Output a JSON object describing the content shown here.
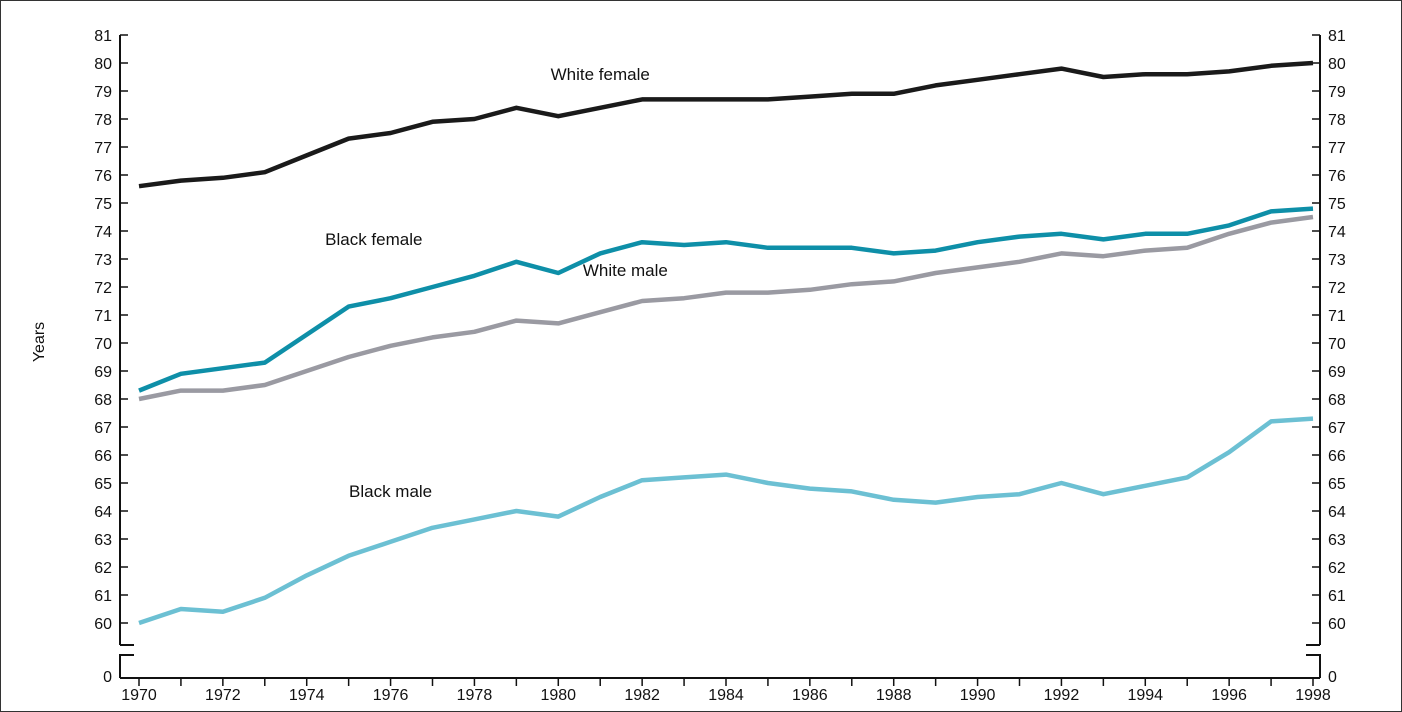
{
  "chart_data": {
    "type": "line",
    "ylabel": "Years",
    "xlabel": "",
    "title": "",
    "x": [
      1970,
      1971,
      1972,
      1973,
      1974,
      1975,
      1976,
      1977,
      1978,
      1979,
      1980,
      1981,
      1982,
      1983,
      1984,
      1985,
      1986,
      1987,
      1988,
      1989,
      1990,
      1991,
      1992,
      1993,
      1994,
      1995,
      1996,
      1997,
      1998
    ],
    "x_tick_labels": [
      "1970",
      "1972",
      "1974",
      "1976",
      "1978",
      "1980",
      "1982",
      "1984",
      "1986",
      "1988",
      "1990",
      "1992",
      "1994",
      "1996",
      "1998"
    ],
    "x_tick_values": [
      1970,
      1972,
      1974,
      1976,
      1978,
      1980,
      1982,
      1984,
      1986,
      1988,
      1990,
      1992,
      1994,
      1996,
      1998
    ],
    "ylim": [
      60,
      81
    ],
    "y_ticks": [
      60,
      61,
      62,
      63,
      64,
      65,
      66,
      67,
      68,
      69,
      70,
      71,
      72,
      73,
      74,
      75,
      76,
      77,
      78,
      79,
      80,
      81
    ],
    "y_tick_labels": [
      "60",
      "61",
      "62",
      "63",
      "64",
      "65",
      "66",
      "67",
      "68",
      "69",
      "70",
      "71",
      "72",
      "73",
      "74",
      "75",
      "76",
      "77",
      "78",
      "79",
      "80",
      "81"
    ],
    "y_zero_label": "0",
    "axis_break": true,
    "grid": false,
    "series": [
      {
        "name": "White female",
        "color": "#1a1a1a",
        "label_at": [
          1981,
          79.4
        ],
        "values": [
          75.6,
          75.8,
          75.9,
          76.1,
          76.7,
          77.3,
          77.5,
          77.9,
          78.0,
          78.4,
          78.1,
          78.4,
          78.7,
          78.7,
          78.7,
          78.7,
          78.8,
          78.9,
          78.9,
          79.2,
          79.4,
          79.6,
          79.8,
          79.5,
          79.6,
          79.6,
          79.7,
          79.9,
          80.0
        ]
      },
      {
        "name": "Black female",
        "color": "#0e8fa8",
        "label_at": [
          1975.6,
          73.5
        ],
        "values": [
          68.3,
          68.9,
          69.1,
          69.3,
          70.3,
          71.3,
          71.6,
          72.0,
          72.4,
          72.9,
          72.5,
          73.2,
          73.6,
          73.5,
          73.6,
          73.4,
          73.4,
          73.4,
          73.2,
          73.3,
          73.6,
          73.8,
          73.9,
          73.7,
          73.9,
          73.9,
          74.2,
          74.7,
          74.8
        ]
      },
      {
        "name": "White male",
        "color": "#9a9aa2",
        "label_at": [
          1981.6,
          72.4
        ],
        "values": [
          68.0,
          68.3,
          68.3,
          68.5,
          69.0,
          69.5,
          69.9,
          70.2,
          70.4,
          70.8,
          70.7,
          71.1,
          71.5,
          71.6,
          71.8,
          71.8,
          71.9,
          72.1,
          72.2,
          72.5,
          72.7,
          72.9,
          73.2,
          73.1,
          73.3,
          73.4,
          73.9,
          74.3,
          74.5
        ]
      },
      {
        "name": "Black male",
        "color": "#6cc0d3",
        "label_at": [
          1976,
          64.5
        ],
        "values": [
          60.0,
          60.5,
          60.4,
          60.9,
          61.7,
          62.4,
          62.9,
          63.4,
          63.7,
          64.0,
          63.8,
          64.5,
          65.1,
          65.2,
          65.3,
          65.0,
          64.8,
          64.7,
          64.4,
          64.3,
          64.5,
          64.6,
          65.0,
          64.6,
          64.9,
          65.2,
          66.1,
          67.2,
          67.3
        ]
      }
    ]
  }
}
